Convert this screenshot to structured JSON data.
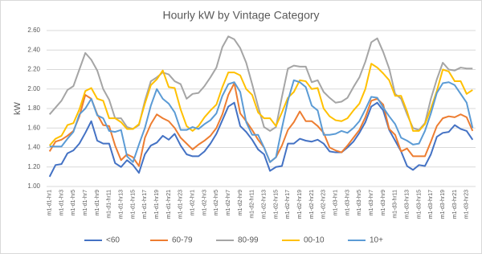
{
  "chart_data": {
    "type": "line",
    "title": "Hourly kW by Vintage Category",
    "y_label": "kW",
    "categories": [
      "m1-d1-hr1",
      null,
      "m1-d1-hr3",
      null,
      "m1-d1-hr5",
      null,
      "m1-d1-hr7",
      null,
      "m1-d1-hr9",
      null,
      "m1-d1-hr11",
      null,
      "m1-d1-hr13",
      null,
      "m1-d1-hr15",
      null,
      "m1-d1-hr17",
      null,
      "m1-d1-hr19",
      null,
      "m1-d1-hr21",
      null,
      "m1-d1-hr23",
      null,
      "m1-d2-hr1",
      null,
      "m1-d2-hr3",
      null,
      "m1-d2-hr5",
      null,
      "m1-d2-hr7",
      null,
      "m1-d2-hr9",
      null,
      "m1-d2-hr11",
      null,
      "m1-d2-hr13",
      null,
      "m1-d2-hr15",
      null,
      "m1-d2-hr17",
      null,
      "m1-d2-hr19",
      null,
      "m1-d2-hr21",
      null,
      "m1-d2-hr23",
      null,
      "m1-d3-hr1",
      null,
      "m1-d3-hr3",
      null,
      "m1-d3-hr5",
      null,
      "m1-d3-hr7",
      null,
      "m1-d3-hr9",
      null,
      "m1-d3-hr11",
      null,
      "m1-d3-hr13",
      null,
      "m1-d3-hr15",
      null,
      "m1-d3-hr17",
      null,
      "m1-d3-hr19",
      null,
      "m1-d3-hr21",
      null,
      "m1-d3-hr23",
      null
    ],
    "series": [
      {
        "name": "<60",
        "color": "#4472c4",
        "values": [
          1.1,
          1.22,
          1.23,
          1.34,
          1.37,
          1.44,
          1.55,
          1.67,
          1.47,
          1.44,
          1.44,
          1.24,
          1.2,
          1.27,
          1.22,
          1.14,
          1.33,
          1.42,
          1.45,
          1.52,
          1.48,
          1.54,
          1.42,
          1.33,
          1.31,
          1.31,
          1.36,
          1.44,
          1.54,
          1.68,
          1.82,
          1.86,
          1.62,
          1.56,
          1.48,
          1.38,
          1.33,
          1.16,
          1.2,
          1.21,
          1.44,
          1.44,
          1.49,
          1.47,
          1.46,
          1.48,
          1.44,
          1.36,
          1.35,
          1.35,
          1.4,
          1.46,
          1.55,
          1.66,
          1.82,
          1.86,
          1.78,
          1.58,
          1.47,
          1.36,
          1.21,
          1.17,
          1.22,
          1.21,
          1.33,
          1.51,
          1.55,
          1.56,
          1.63,
          1.59,
          1.57,
          1.48
        ]
      },
      {
        "name": "60-79",
        "color": "#ed7d31",
        "values": [
          1.36,
          1.46,
          1.48,
          1.52,
          1.57,
          1.72,
          1.94,
          1.9,
          1.74,
          1.63,
          1.62,
          1.42,
          1.27,
          1.33,
          1.3,
          1.21,
          1.5,
          1.64,
          1.74,
          1.7,
          1.67,
          1.6,
          1.5,
          1.44,
          1.38,
          1.43,
          1.47,
          1.52,
          1.6,
          1.74,
          1.94,
          2.06,
          1.75,
          1.67,
          1.58,
          1.48,
          1.4,
          1.25,
          1.3,
          1.42,
          1.58,
          1.66,
          1.77,
          1.67,
          1.67,
          1.62,
          1.55,
          1.4,
          1.37,
          1.35,
          1.42,
          1.5,
          1.58,
          1.71,
          1.88,
          1.9,
          1.84,
          1.59,
          1.53,
          1.36,
          1.39,
          1.31,
          1.31,
          1.31,
          1.46,
          1.62,
          1.7,
          1.72,
          1.71,
          1.74,
          1.71,
          1.57
        ]
      },
      {
        "name": "80-99",
        "color": "#a5a5a5",
        "values": [
          1.74,
          1.81,
          1.88,
          1.99,
          2.03,
          2.2,
          2.37,
          2.3,
          2.19,
          2.0,
          1.89,
          1.7,
          1.7,
          1.61,
          1.59,
          1.63,
          1.88,
          2.08,
          2.12,
          2.17,
          2.15,
          2.08,
          2.05,
          1.9,
          1.95,
          1.96,
          2.03,
          2.12,
          2.22,
          2.43,
          2.54,
          2.51,
          2.42,
          2.27,
          2.05,
          1.82,
          1.61,
          1.57,
          1.61,
          1.92,
          2.21,
          2.24,
          2.23,
          2.23,
          2.07,
          2.09,
          1.97,
          1.91,
          1.86,
          1.87,
          1.91,
          2.02,
          2.12,
          2.28,
          2.48,
          2.52,
          2.38,
          2.21,
          1.95,
          1.9,
          1.74,
          1.6,
          1.58,
          1.65,
          1.9,
          2.1,
          2.27,
          2.2,
          2.19,
          2.22,
          2.21,
          2.21
        ]
      },
      {
        "name": "00-10",
        "color": "#ffc000",
        "values": [
          1.42,
          1.49,
          1.52,
          1.63,
          1.65,
          1.79,
          1.98,
          2.01,
          1.9,
          1.88,
          1.7,
          1.7,
          1.66,
          1.59,
          1.59,
          1.64,
          1.85,
          2.04,
          2.1,
          2.19,
          2.02,
          2.01,
          1.79,
          1.62,
          1.57,
          1.62,
          1.71,
          1.78,
          1.84,
          2.02,
          2.17,
          2.17,
          2.14,
          2.0,
          1.94,
          1.76,
          1.7,
          1.7,
          1.62,
          1.76,
          1.91,
          1.97,
          2.09,
          2.08,
          2.0,
          2.01,
          1.8,
          1.72,
          1.68,
          1.67,
          1.7,
          1.78,
          1.85,
          2.0,
          2.26,
          2.22,
          2.16,
          2.09,
          1.93,
          1.93,
          1.77,
          1.57,
          1.57,
          1.64,
          1.8,
          1.98,
          2.2,
          2.18,
          2.08,
          2.08,
          1.95,
          1.99
        ]
      },
      {
        "name": "10+",
        "color": "#5b9bd5",
        "values": [
          1.41,
          1.41,
          1.41,
          1.49,
          1.56,
          1.74,
          1.8,
          1.9,
          1.73,
          1.7,
          1.57,
          1.56,
          1.58,
          1.31,
          1.25,
          1.43,
          1.6,
          1.83,
          2.0,
          1.9,
          1.85,
          1.76,
          1.58,
          1.58,
          1.61,
          1.59,
          1.64,
          1.68,
          1.75,
          1.93,
          2.05,
          2.07,
          1.97,
          1.66,
          1.53,
          1.53,
          1.4,
          1.25,
          1.3,
          1.6,
          1.88,
          2.09,
          2.07,
          2.02,
          1.83,
          1.78,
          1.53,
          1.53,
          1.54,
          1.57,
          1.55,
          1.6,
          1.67,
          1.79,
          1.92,
          1.91,
          1.81,
          1.72,
          1.64,
          1.5,
          1.47,
          1.43,
          1.44,
          1.57,
          1.75,
          1.96,
          2.06,
          2.07,
          2.04,
          1.95,
          1.86,
          1.6
        ]
      }
    ],
    "ylim": [
      1.0,
      2.6
    ],
    "yticks": [
      {
        "value": 1.0,
        "label": "1.00"
      },
      {
        "value": 1.2,
        "label": "1.20"
      },
      {
        "value": 1.4,
        "label": "1.40"
      },
      {
        "value": 1.6,
        "label": "1.60"
      },
      {
        "value": 1.8,
        "label": "1.80"
      },
      {
        "value": 2.0,
        "label": "2.00"
      },
      {
        "value": 2.2,
        "label": "2.20"
      },
      {
        "value": 2.4,
        "label": "2.40"
      },
      {
        "value": 2.6,
        "label": "2.60"
      }
    ],
    "grid": true,
    "legend": "bottom"
  }
}
